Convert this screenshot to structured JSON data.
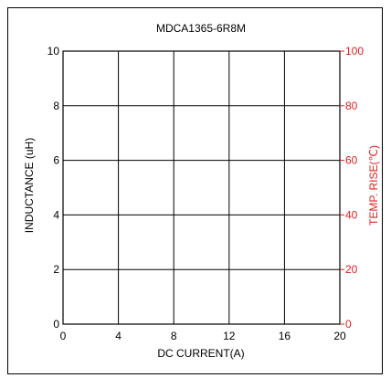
{
  "chart_data": {
    "type": "line",
    "title": "MDCA1365-6R8M",
    "xlabel": "DC CURRENT(A)",
    "ylabel": "INDUCTANCE (uH)",
    "y2label": "TEMP. RISE(℃)",
    "xlim": [
      0,
      20
    ],
    "ylim": [
      0,
      10
    ],
    "y2lim": [
      0,
      100
    ],
    "x_ticks": [
      0,
      4,
      8,
      12,
      16,
      20
    ],
    "y_ticks": [
      0,
      2,
      4,
      6,
      8,
      10
    ],
    "y2_ticks": [
      0,
      20,
      40,
      60,
      80,
      100
    ],
    "grid": true,
    "series": [],
    "colors": {
      "left_axis": "#000000",
      "right_axis": "#e0201e"
    }
  }
}
